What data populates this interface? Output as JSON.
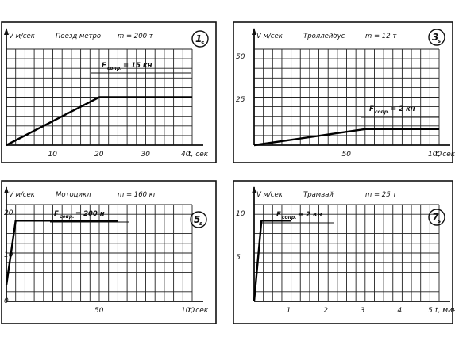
{
  "chart_data": [
    {
      "type": "line",
      "index": "1",
      "index_sub": "s",
      "title": "Поезд метро",
      "mass": "m = 200 т",
      "ylabel": "V м/сек",
      "xlabel": "t, сек",
      "x_ticks": [
        "10",
        "20",
        "30",
        "40"
      ],
      "y_ticks": [],
      "xlim": [
        0,
        40
      ],
      "ylim": [
        0,
        60
      ],
      "grid": true,
      "series": [
        {
          "x": [
            0,
            20,
            40
          ],
          "y": [
            0,
            30,
            30
          ]
        }
      ],
      "annotation": {
        "f": "F",
        "sub": "сопр.",
        "value": "= 15 кн"
      }
    },
    {
      "type": "line",
      "index": "3",
      "index_sub": "s",
      "title": "Троллейбус",
      "mass": "m = 12 т",
      "ylabel": "V м/сек",
      "xlabel": "t, сек",
      "x_ticks": [
        "50",
        "100"
      ],
      "y_ticks": [
        "25",
        "50"
      ],
      "xlim": [
        0,
        100
      ],
      "ylim": [
        0,
        60
      ],
      "grid": true,
      "series": [
        {
          "x": [
            0,
            60,
            100
          ],
          "y": [
            0,
            10,
            10
          ]
        }
      ],
      "annotation": {
        "f": "F",
        "sub": "сопр.",
        "value": "= 2 кн"
      }
    },
    {
      "type": "line",
      "index": "5",
      "index_sub": "s",
      "title": "Мотоцикл",
      "mass": "m = 160 кг",
      "ylabel": "V м/сек",
      "xlabel": "t, сек",
      "x_ticks": [
        "50",
        "100"
      ],
      "y_ticks": [
        "0",
        "10",
        "20"
      ],
      "xlim": [
        0,
        100
      ],
      "ylim": [
        -5,
        25
      ],
      "grid": true,
      "series": [
        {
          "x": [
            0,
            5,
            60
          ],
          "y": [
            0,
            20,
            20
          ]
        }
      ],
      "annotation": {
        "f": "F",
        "sub": "сопр.",
        "value": "= 200 н"
      }
    },
    {
      "type": "line",
      "index": "7",
      "index_sub": "s",
      "title": "Трамвай",
      "mass": "m = 25 т",
      "ylabel": "V м/сек",
      "xlabel": "t, мин",
      "x_ticks": [
        "1",
        "2",
        "3",
        "4",
        "5"
      ],
      "y_ticks": [
        "5",
        "10"
      ],
      "xlim": [
        0,
        5
      ],
      "ylim": [
        0,
        12
      ],
      "grid": true,
      "series": [
        {
          "x": [
            0,
            0.2,
            1.0
          ],
          "y": [
            0,
            10,
            10
          ]
        }
      ],
      "annotation": {
        "f": "F",
        "sub": "сопр.",
        "value": "= 2 кн"
      }
    }
  ]
}
